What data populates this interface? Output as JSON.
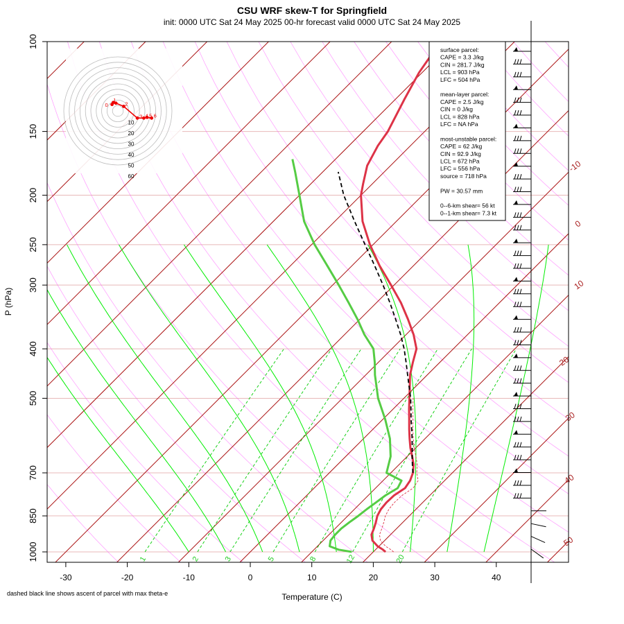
{
  "title": "CSU WRF skew-T for Springfield",
  "subtitle": "init: 0000 UTC Sat 24 May 2025    00-hr forecast valid 0000 UTC Sat 24 May 2025",
  "ylabel": "P (hPa)",
  "xlabel": "Temperature (C)",
  "footnote": "dashed black line shows ascent of parcel with max theta-e",
  "colors": {
    "temperature": "#dd3347",
    "dewpoint": "#55cc44",
    "parcel": "#000000",
    "isotherm": "#aa1111",
    "dry_adiabat": "#ff44ff",
    "moist_adiabat": "#00ee00",
    "mixing_ratio": "#00cc00",
    "isobar": "#e8b8b8",
    "hodograph": "#ee0000"
  },
  "info_box": [
    "surface parcel:",
    "CAPE = 3.3 J/kg",
    "CIN = 281.7 J/kg",
    "LCL = 903 hPa",
    "LFC = 504 hPa",
    "",
    "mean-layer parcel:",
    "CAPE = 2.5 J/kg",
    "CIN = 0 J/kg",
    "LCL = 828 hPa",
    "LFC = NA hPa",
    "",
    "most-unstable parcel:",
    "CAPE = 62 J/kg",
    "CIN = 92.9 J/kg",
    "LCL = 672 hPa",
    "LFC = 556 hPa",
    "source = 718 hPa",
    "",
    "PW =  30.57 mm",
    "",
    "0--6-km shear= 56 kt",
    "0--1-km shear= 7.3 kt"
  ],
  "chart_data": {
    "type": "line",
    "skew_t": true,
    "y_scale": "log",
    "y_reversed": true,
    "xlim": [
      -33,
      43
    ],
    "ylim": [
      1000,
      100
    ],
    "x_ticks": [
      -30,
      -20,
      -10,
      0,
      10,
      20,
      30,
      40
    ],
    "pressure_ticks": [
      100,
      150,
      200,
      250,
      300,
      400,
      500,
      700,
      850,
      1000
    ],
    "isotherm_labels": [
      -10,
      0,
      10,
      20,
      30,
      40,
      50
    ],
    "mixing_ratio_labels": [
      "1",
      "2",
      "3",
      "5",
      "8",
      "12",
      "20"
    ],
    "series": [
      {
        "key": "temperature",
        "points": [
          [
            1000,
            22
          ],
          [
            990,
            21.2
          ],
          [
            975,
            19.8
          ],
          [
            950,
            18.0
          ],
          [
            925,
            16.9
          ],
          [
            900,
            16.3
          ],
          [
            875,
            15.6
          ],
          [
            850,
            14.8
          ],
          [
            825,
            14.3
          ],
          [
            800,
            14.1
          ],
          [
            775,
            14.2
          ],
          [
            750,
            14.8
          ],
          [
            725,
            14.4
          ],
          [
            700,
            13.6
          ],
          [
            675,
            12.4
          ],
          [
            650,
            10.8
          ],
          [
            625,
            9.1
          ],
          [
            600,
            7.5
          ],
          [
            575,
            5.9
          ],
          [
            550,
            4.3
          ],
          [
            525,
            2.6
          ],
          [
            500,
            0.9
          ],
          [
            475,
            -0.9
          ],
          [
            450,
            -2.8
          ],
          [
            425,
            -4.4
          ],
          [
            400,
            -6.0
          ],
          [
            375,
            -8.8
          ],
          [
            350,
            -12.2
          ],
          [
            325,
            -16.0
          ],
          [
            300,
            -20.5
          ],
          [
            275,
            -25.5
          ],
          [
            250,
            -30.5
          ],
          [
            225,
            -35.5
          ],
          [
            200,
            -40.0
          ],
          [
            190,
            -41.5
          ],
          [
            175,
            -43.8
          ],
          [
            160,
            -45.3
          ],
          [
            150,
            -46.0
          ],
          [
            130,
            -48.5
          ],
          [
            115,
            -50.5
          ],
          [
            105,
            -51.5
          ]
        ]
      },
      {
        "key": "dewpoint",
        "points": [
          [
            1000,
            16.5
          ],
          [
            990,
            14.0
          ],
          [
            975,
            12.0
          ],
          [
            950,
            11.2
          ],
          [
            925,
            11.0
          ],
          [
            900,
            11.0
          ],
          [
            875,
            11.3
          ],
          [
            850,
            11.7
          ],
          [
            825,
            12.0
          ],
          [
            800,
            12.4
          ],
          [
            775,
            12.8
          ],
          [
            750,
            13.6
          ],
          [
            725,
            13.0
          ],
          [
            700,
            9.3
          ],
          [
            650,
            7.3
          ],
          [
            600,
            4.3
          ],
          [
            550,
            0.4
          ],
          [
            500,
            -4.2
          ],
          [
            450,
            -8.5
          ],
          [
            425,
            -10.6
          ],
          [
            400,
            -13.0
          ],
          [
            375,
            -16.8
          ],
          [
            350,
            -20.4
          ],
          [
            325,
            -24.5
          ],
          [
            300,
            -29.0
          ],
          [
            275,
            -34.0
          ],
          [
            250,
            -39.5
          ],
          [
            225,
            -45.0
          ],
          [
            200,
            -50.0
          ],
          [
            180,
            -54.5
          ],
          [
            170,
            -57.0
          ]
        ]
      },
      {
        "key": "parcel",
        "points": [
          [
            700,
            13.6
          ],
          [
            675,
            12.2
          ],
          [
            650,
            10.8
          ],
          [
            625,
            9.4
          ],
          [
            600,
            7.9
          ],
          [
            575,
            6.3
          ],
          [
            550,
            4.6
          ],
          [
            525,
            2.9
          ],
          [
            500,
            1.1
          ],
          [
            475,
            -1.0
          ],
          [
            450,
            -3.2
          ],
          [
            425,
            -5.5
          ],
          [
            400,
            -8.0
          ],
          [
            375,
            -10.9
          ],
          [
            350,
            -14.2
          ],
          [
            325,
            -17.8
          ],
          [
            300,
            -21.8
          ],
          [
            275,
            -26.3
          ],
          [
            250,
            -31.3
          ],
          [
            225,
            -36.8
          ],
          [
            200,
            -42.8
          ],
          [
            180,
            -47.5
          ]
        ]
      }
    ],
    "hodograph": {
      "ring_labels": [
        "10",
        "20",
        "30",
        "40",
        "50",
        "60"
      ],
      "point_labels": [
        "0",
        "1",
        "2",
        "3",
        "4",
        "5",
        "6"
      ]
    },
    "wind_profile_rows": 40
  }
}
